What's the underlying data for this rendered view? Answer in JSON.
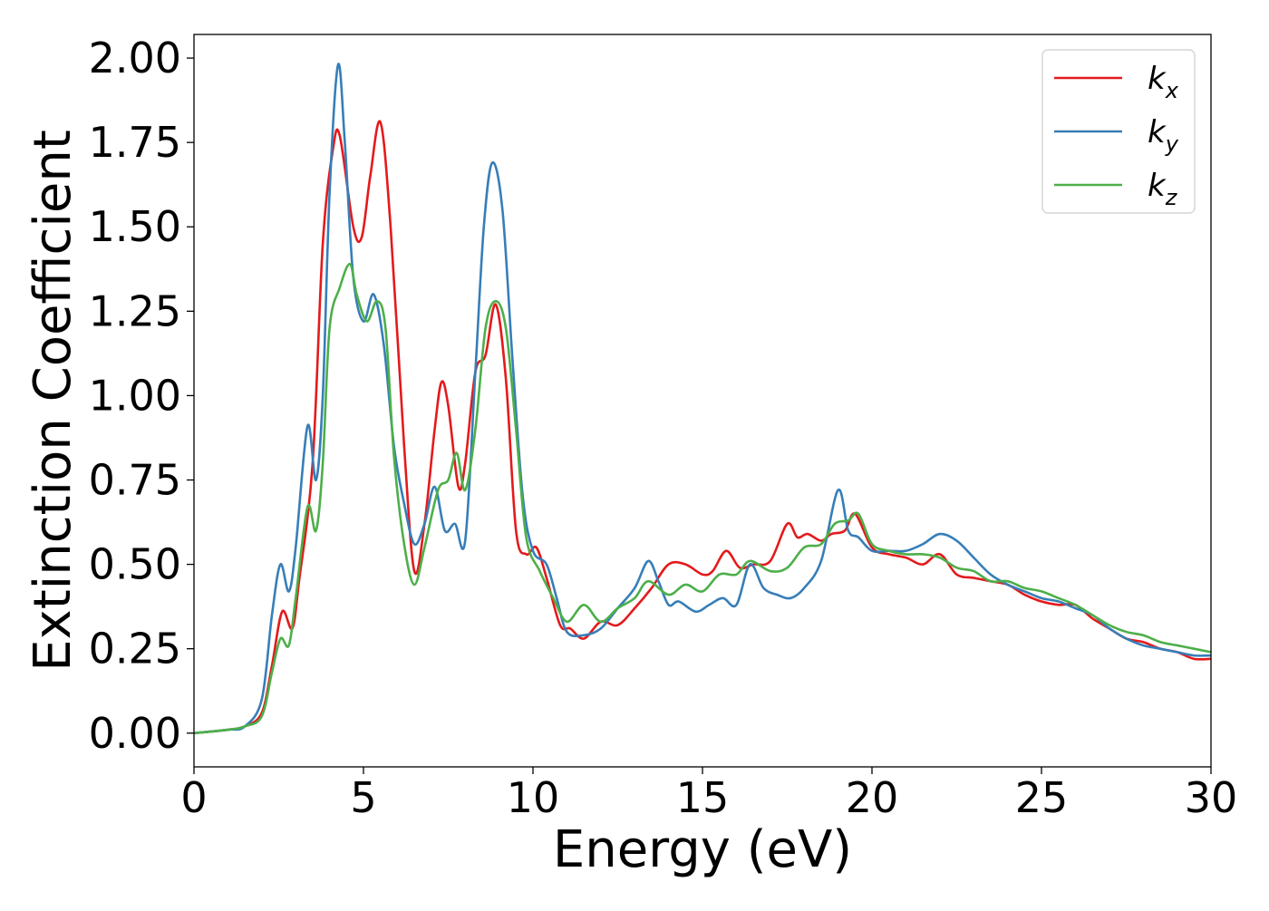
{
  "chart_data": {
    "type": "line",
    "title": "",
    "xlabel": "Energy (eV)",
    "ylabel": "Extinction Coefficient",
    "xlim": [
      0,
      30
    ],
    "ylim": [
      -0.1,
      2.07
    ],
    "xticks": [
      0,
      5,
      10,
      15,
      20,
      25,
      30
    ],
    "xtick_labels": [
      "0",
      "5",
      "10",
      "15",
      "20",
      "25",
      "30"
    ],
    "yticks": [
      0.0,
      0.25,
      0.5,
      0.75,
      1.0,
      1.25,
      1.5,
      1.75,
      2.0
    ],
    "ytick_labels": [
      "0.00",
      "0.25",
      "0.50",
      "0.75",
      "1.00",
      "1.25",
      "1.50",
      "1.75",
      "2.00"
    ],
    "grid": false,
    "legend_position": "top-right",
    "series": [
      {
        "name": "k",
        "subscript": "x",
        "color": "#e41a1c",
        "points": [
          [
            0,
            0
          ],
          [
            1,
            0.01
          ],
          [
            1.5,
            0.02
          ],
          [
            2.0,
            0.06
          ],
          [
            2.3,
            0.2
          ],
          [
            2.6,
            0.36
          ],
          [
            2.9,
            0.31
          ],
          [
            3.1,
            0.45
          ],
          [
            3.5,
            0.8
          ],
          [
            3.8,
            1.45
          ],
          [
            4.1,
            1.73
          ],
          [
            4.3,
            1.77
          ],
          [
            4.7,
            1.5
          ],
          [
            4.95,
            1.47
          ],
          [
            5.2,
            1.65
          ],
          [
            5.5,
            1.81
          ],
          [
            5.8,
            1.5
          ],
          [
            6.2,
            0.85
          ],
          [
            6.5,
            0.48
          ],
          [
            6.8,
            0.62
          ],
          [
            7.1,
            0.9
          ],
          [
            7.3,
            1.04
          ],
          [
            7.5,
            0.97
          ],
          [
            7.8,
            0.73
          ],
          [
            8.0,
            0.8
          ],
          [
            8.3,
            1.07
          ],
          [
            8.6,
            1.12
          ],
          [
            8.9,
            1.27
          ],
          [
            9.2,
            1.05
          ],
          [
            9.5,
            0.6
          ],
          [
            9.8,
            0.53
          ],
          [
            10.1,
            0.55
          ],
          [
            10.4,
            0.46
          ],
          [
            10.8,
            0.32
          ],
          [
            11.1,
            0.31
          ],
          [
            11.5,
            0.28
          ],
          [
            12.0,
            0.33
          ],
          [
            12.5,
            0.32
          ],
          [
            13.0,
            0.37
          ],
          [
            13.5,
            0.43
          ],
          [
            14.0,
            0.5
          ],
          [
            14.5,
            0.5
          ],
          [
            15.0,
            0.47
          ],
          [
            15.3,
            0.48
          ],
          [
            15.7,
            0.54
          ],
          [
            16.1,
            0.49
          ],
          [
            16.5,
            0.5
          ],
          [
            17.0,
            0.51
          ],
          [
            17.5,
            0.62
          ],
          [
            17.8,
            0.58
          ],
          [
            18.1,
            0.59
          ],
          [
            18.5,
            0.57
          ],
          [
            18.8,
            0.59
          ],
          [
            19.2,
            0.6
          ],
          [
            19.5,
            0.65
          ],
          [
            20.0,
            0.55
          ],
          [
            20.5,
            0.53
          ],
          [
            21.0,
            0.52
          ],
          [
            21.5,
            0.5
          ],
          [
            22.0,
            0.53
          ],
          [
            22.5,
            0.47
          ],
          [
            23.0,
            0.46
          ],
          [
            23.5,
            0.45
          ],
          [
            24.0,
            0.44
          ],
          [
            24.5,
            0.41
          ],
          [
            25.0,
            0.39
          ],
          [
            25.5,
            0.38
          ],
          [
            26.0,
            0.38
          ],
          [
            26.5,
            0.34
          ],
          [
            27.0,
            0.31
          ],
          [
            27.5,
            0.28
          ],
          [
            28.0,
            0.27
          ],
          [
            28.5,
            0.25
          ],
          [
            29.0,
            0.24
          ],
          [
            29.5,
            0.22
          ],
          [
            30.0,
            0.22
          ]
        ]
      },
      {
        "name": "k",
        "subscript": "y",
        "color": "#377eb8",
        "points": [
          [
            0,
            0
          ],
          [
            1,
            0.01
          ],
          [
            1.5,
            0.02
          ],
          [
            2.0,
            0.1
          ],
          [
            2.3,
            0.35
          ],
          [
            2.55,
            0.5
          ],
          [
            2.8,
            0.42
          ],
          [
            3.0,
            0.55
          ],
          [
            3.35,
            0.91
          ],
          [
            3.6,
            0.75
          ],
          [
            3.8,
            1.0
          ],
          [
            4.0,
            1.6
          ],
          [
            4.25,
            1.98
          ],
          [
            4.45,
            1.75
          ],
          [
            4.7,
            1.35
          ],
          [
            5.0,
            1.22
          ],
          [
            5.3,
            1.3
          ],
          [
            5.6,
            1.15
          ],
          [
            5.9,
            0.85
          ],
          [
            6.2,
            0.68
          ],
          [
            6.5,
            0.56
          ],
          [
            6.8,
            0.62
          ],
          [
            7.1,
            0.73
          ],
          [
            7.4,
            0.6
          ],
          [
            7.7,
            0.62
          ],
          [
            8.0,
            0.57
          ],
          [
            8.3,
            1.07
          ],
          [
            8.55,
            1.5
          ],
          [
            8.8,
            1.69
          ],
          [
            9.1,
            1.55
          ],
          [
            9.4,
            1.1
          ],
          [
            9.7,
            0.7
          ],
          [
            10.0,
            0.54
          ],
          [
            10.4,
            0.5
          ],
          [
            10.7,
            0.4
          ],
          [
            11.0,
            0.3
          ],
          [
            11.5,
            0.29
          ],
          [
            12.0,
            0.31
          ],
          [
            12.5,
            0.37
          ],
          [
            13.0,
            0.43
          ],
          [
            13.4,
            0.51
          ],
          [
            13.7,
            0.45
          ],
          [
            14.0,
            0.38
          ],
          [
            14.3,
            0.39
          ],
          [
            14.8,
            0.36
          ],
          [
            15.2,
            0.38
          ],
          [
            15.6,
            0.4
          ],
          [
            16.0,
            0.38
          ],
          [
            16.4,
            0.5
          ],
          [
            16.8,
            0.43
          ],
          [
            17.2,
            0.41
          ],
          [
            17.6,
            0.4
          ],
          [
            18.0,
            0.43
          ],
          [
            18.5,
            0.51
          ],
          [
            19.0,
            0.72
          ],
          [
            19.3,
            0.6
          ],
          [
            19.6,
            0.58
          ],
          [
            20.0,
            0.54
          ],
          [
            20.5,
            0.54
          ],
          [
            21.0,
            0.54
          ],
          [
            21.5,
            0.56
          ],
          [
            22.0,
            0.59
          ],
          [
            22.5,
            0.57
          ],
          [
            23.0,
            0.52
          ],
          [
            23.5,
            0.47
          ],
          [
            24.0,
            0.44
          ],
          [
            24.5,
            0.42
          ],
          [
            25.0,
            0.4
          ],
          [
            25.5,
            0.39
          ],
          [
            26.0,
            0.37
          ],
          [
            26.5,
            0.35
          ],
          [
            27.0,
            0.31
          ],
          [
            27.5,
            0.28
          ],
          [
            28.0,
            0.26
          ],
          [
            28.5,
            0.25
          ],
          [
            29.0,
            0.24
          ],
          [
            29.5,
            0.23
          ],
          [
            30.0,
            0.23
          ]
        ]
      },
      {
        "name": "k",
        "subscript": "z",
        "color": "#4daf4a",
        "points": [
          [
            0,
            0
          ],
          [
            1,
            0.01
          ],
          [
            1.5,
            0.02
          ],
          [
            2.0,
            0.05
          ],
          [
            2.3,
            0.18
          ],
          [
            2.55,
            0.28
          ],
          [
            2.8,
            0.26
          ],
          [
            3.0,
            0.4
          ],
          [
            3.35,
            0.67
          ],
          [
            3.6,
            0.6
          ],
          [
            3.8,
            0.8
          ],
          [
            4.0,
            1.2
          ],
          [
            4.3,
            1.32
          ],
          [
            4.6,
            1.39
          ],
          [
            4.8,
            1.3
          ],
          [
            5.1,
            1.22
          ],
          [
            5.4,
            1.28
          ],
          [
            5.65,
            1.2
          ],
          [
            5.9,
            0.82
          ],
          [
            6.2,
            0.56
          ],
          [
            6.5,
            0.44
          ],
          [
            6.8,
            0.55
          ],
          [
            7.2,
            0.72
          ],
          [
            7.5,
            0.75
          ],
          [
            7.75,
            0.83
          ],
          [
            8.0,
            0.72
          ],
          [
            8.3,
            0.9
          ],
          [
            8.6,
            1.2
          ],
          [
            8.9,
            1.28
          ],
          [
            9.2,
            1.2
          ],
          [
            9.5,
            0.9
          ],
          [
            9.8,
            0.58
          ],
          [
            10.2,
            0.48
          ],
          [
            10.6,
            0.4
          ],
          [
            11.0,
            0.33
          ],
          [
            11.5,
            0.38
          ],
          [
            12.0,
            0.33
          ],
          [
            12.5,
            0.37
          ],
          [
            13.0,
            0.4
          ],
          [
            13.4,
            0.45
          ],
          [
            14.0,
            0.41
          ],
          [
            14.5,
            0.44
          ],
          [
            15.0,
            0.42
          ],
          [
            15.5,
            0.47
          ],
          [
            16.0,
            0.47
          ],
          [
            16.4,
            0.51
          ],
          [
            17.0,
            0.48
          ],
          [
            17.5,
            0.49
          ],
          [
            18.0,
            0.55
          ],
          [
            18.5,
            0.56
          ],
          [
            18.9,
            0.62
          ],
          [
            19.3,
            0.63
          ],
          [
            19.6,
            0.65
          ],
          [
            20.0,
            0.56
          ],
          [
            20.5,
            0.54
          ],
          [
            21.0,
            0.53
          ],
          [
            21.5,
            0.53
          ],
          [
            22.0,
            0.52
          ],
          [
            22.5,
            0.49
          ],
          [
            23.0,
            0.48
          ],
          [
            23.5,
            0.45
          ],
          [
            24.0,
            0.45
          ],
          [
            24.5,
            0.43
          ],
          [
            25.0,
            0.42
          ],
          [
            25.5,
            0.4
          ],
          [
            26.0,
            0.38
          ],
          [
            26.5,
            0.35
          ],
          [
            27.0,
            0.32
          ],
          [
            27.5,
            0.3
          ],
          [
            28.0,
            0.29
          ],
          [
            28.5,
            0.27
          ],
          [
            29.0,
            0.26
          ],
          [
            29.5,
            0.25
          ],
          [
            30.0,
            0.24
          ]
        ]
      }
    ]
  }
}
